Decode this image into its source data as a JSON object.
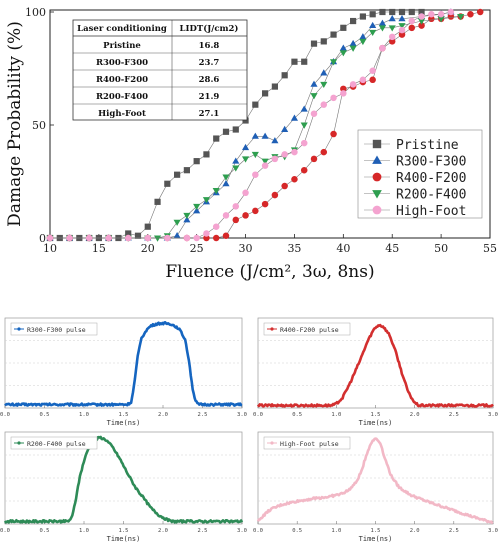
{
  "main_chart": {
    "type": "scatter",
    "xlabel": "Fluence (J/cm², 3ω, 8ns)",
    "ylabel": "Damage Probability (%)",
    "xlim": [
      10,
      55
    ],
    "ylim": [
      0,
      100
    ],
    "x_ticks": [
      "10",
      "15",
      "20",
      "25",
      "30",
      "35",
      "40",
      "45",
      "50",
      "55"
    ],
    "y_ticks": [
      "0",
      "50",
      "100"
    ],
    "legend_position": "bottom-right",
    "series": [
      {
        "name": "Pristine",
        "marker": "square",
        "color": "#555555",
        "points": [
          [
            10,
            0
          ],
          [
            11,
            0
          ],
          [
            12,
            0
          ],
          [
            13,
            0
          ],
          [
            14,
            0
          ],
          [
            15,
            0
          ],
          [
            16,
            0
          ],
          [
            17,
            0
          ],
          [
            18,
            2
          ],
          [
            19,
            1
          ],
          [
            20,
            5
          ],
          [
            21,
            16
          ],
          [
            22,
            24
          ],
          [
            23,
            28
          ],
          [
            24,
            30
          ],
          [
            25,
            34
          ],
          [
            26,
            37
          ],
          [
            27,
            44
          ],
          [
            28,
            47
          ],
          [
            29,
            48
          ],
          [
            30,
            52
          ],
          [
            31,
            59
          ],
          [
            32,
            64
          ],
          [
            33,
            67
          ],
          [
            34,
            72
          ],
          [
            35,
            78
          ],
          [
            36,
            78
          ],
          [
            37,
            86
          ],
          [
            38,
            87
          ],
          [
            39,
            90
          ],
          [
            40,
            93
          ],
          [
            41,
            96
          ],
          [
            42,
            98
          ],
          [
            43,
            99
          ],
          [
            44,
            100
          ],
          [
            45,
            100
          ],
          [
            46,
            100
          ],
          [
            47,
            100
          ],
          [
            48,
            100
          ]
        ]
      },
      {
        "name": "R300-F300",
        "marker": "triangle-up",
        "color": "#1f5fb5",
        "points": [
          [
            10,
            0
          ],
          [
            12,
            0
          ],
          [
            14,
            0
          ],
          [
            16,
            0
          ],
          [
            18,
            0
          ],
          [
            20,
            0
          ],
          [
            22,
            0
          ],
          [
            23,
            1
          ],
          [
            24,
            8
          ],
          [
            25,
            12
          ],
          [
            26,
            16
          ],
          [
            27,
            20
          ],
          [
            28,
            24
          ],
          [
            29,
            34
          ],
          [
            30,
            40
          ],
          [
            31,
            45
          ],
          [
            32,
            45
          ],
          [
            33,
            43
          ],
          [
            34,
            48
          ],
          [
            35,
            53
          ],
          [
            36,
            57
          ],
          [
            37,
            68
          ],
          [
            38,
            73
          ],
          [
            39,
            78
          ],
          [
            40,
            84
          ],
          [
            41,
            86
          ],
          [
            42,
            89
          ],
          [
            43,
            94
          ],
          [
            44,
            95
          ],
          [
            45,
            97
          ],
          [
            46,
            97
          ],
          [
            48,
            98
          ],
          [
            50,
            99
          ],
          [
            51,
            100
          ]
        ]
      },
      {
        "name": "R400-F200",
        "marker": "circle",
        "color": "#d62728",
        "points": [
          [
            10,
            0
          ],
          [
            12,
            0
          ],
          [
            14,
            0
          ],
          [
            16,
            0
          ],
          [
            18,
            0
          ],
          [
            20,
            0
          ],
          [
            22,
            0
          ],
          [
            24,
            0
          ],
          [
            26,
            0
          ],
          [
            27,
            0
          ],
          [
            28,
            1
          ],
          [
            29,
            8
          ],
          [
            30,
            10
          ],
          [
            31,
            12
          ],
          [
            32,
            15
          ],
          [
            33,
            19
          ],
          [
            34,
            23
          ],
          [
            35,
            26
          ],
          [
            36,
            30
          ],
          [
            37,
            35
          ],
          [
            38,
            38
          ],
          [
            39,
            46
          ],
          [
            40,
            66
          ],
          [
            41,
            67
          ],
          [
            42,
            69
          ],
          [
            43,
            70
          ],
          [
            44,
            84
          ],
          [
            45,
            87
          ],
          [
            46,
            90
          ],
          [
            47,
            93
          ],
          [
            48,
            94
          ],
          [
            49,
            97
          ],
          [
            50,
            97
          ],
          [
            51,
            98
          ],
          [
            52,
            98
          ],
          [
            53,
            99
          ],
          [
            54,
            100
          ]
        ]
      },
      {
        "name": "R200-F400",
        "marker": "triangle-down",
        "color": "#2e9e4f",
        "points": [
          [
            10,
            0
          ],
          [
            12,
            0
          ],
          [
            14,
            0
          ],
          [
            16,
            0
          ],
          [
            18,
            0
          ],
          [
            20,
            0
          ],
          [
            21,
            0
          ],
          [
            22,
            1
          ],
          [
            23,
            7
          ],
          [
            24,
            10
          ],
          [
            25,
            14
          ],
          [
            26,
            17
          ],
          [
            27,
            21
          ],
          [
            28,
            27
          ],
          [
            29,
            31
          ],
          [
            30,
            35
          ],
          [
            31,
            37
          ],
          [
            32,
            34
          ],
          [
            33,
            36
          ],
          [
            34,
            36
          ],
          [
            35,
            39
          ],
          [
            36,
            50
          ],
          [
            37,
            63
          ],
          [
            38,
            68
          ],
          [
            39,
            78
          ],
          [
            40,
            82
          ],
          [
            41,
            84
          ],
          [
            42,
            87
          ],
          [
            43,
            91
          ],
          [
            44,
            93
          ],
          [
            45,
            93
          ],
          [
            46,
            94
          ],
          [
            48,
            96
          ],
          [
            50,
            97
          ],
          [
            52,
            98
          ]
        ]
      },
      {
        "name": "High-Foot",
        "marker": "circle",
        "color": "#f4a3d0",
        "points": [
          [
            10,
            0
          ],
          [
            12,
            0
          ],
          [
            14,
            0
          ],
          [
            16,
            0
          ],
          [
            18,
            0
          ],
          [
            20,
            0
          ],
          [
            22,
            0
          ],
          [
            24,
            0
          ],
          [
            25,
            0
          ],
          [
            26,
            2
          ],
          [
            27,
            5
          ],
          [
            28,
            10
          ],
          [
            29,
            14
          ],
          [
            30,
            20
          ],
          [
            31,
            28
          ],
          [
            32,
            32
          ],
          [
            33,
            35
          ],
          [
            34,
            37
          ],
          [
            35,
            38
          ],
          [
            36,
            42
          ],
          [
            37,
            55
          ],
          [
            38,
            59
          ],
          [
            39,
            62
          ],
          [
            40,
            64
          ],
          [
            41,
            68
          ],
          [
            42,
            70
          ],
          [
            43,
            74
          ],
          [
            44,
            84
          ],
          [
            45,
            89
          ],
          [
            46,
            92
          ],
          [
            47,
            96
          ],
          [
            48,
            98
          ],
          [
            49,
            99
          ],
          [
            50,
            99
          ],
          [
            51,
            100
          ]
        ]
      }
    ]
  },
  "lidt_table": {
    "headers": [
      "Laser conditioning",
      "LIDT(J/cm2)"
    ],
    "rows": [
      [
        "Pristine",
        "16.8"
      ],
      [
        "R300-F300",
        "23.7"
      ],
      [
        "R400-F200",
        "28.6"
      ],
      [
        "R200-F400",
        "21.9"
      ],
      [
        "High-Foot",
        "27.1"
      ]
    ]
  },
  "pulse_charts": [
    {
      "label": "R300-F300 pulse",
      "color": "#1565c0",
      "xlabel": "Time(ns)",
      "x_ticks": [
        "0.0",
        "0.5",
        "1.0",
        "1.5",
        "2.0",
        "2.5",
        "3.0"
      ],
      "xlim": [
        0,
        3.0
      ],
      "ylim": [
        0,
        1.05
      ],
      "shape": [
        [
          0,
          0.04
        ],
        [
          1.55,
          0.04
        ],
        [
          1.6,
          0.07
        ],
        [
          1.64,
          0.3
        ],
        [
          1.68,
          0.6
        ],
        [
          1.72,
          0.8
        ],
        [
          1.78,
          0.9
        ],
        [
          1.85,
          0.96
        ],
        [
          1.92,
          0.98
        ],
        [
          2.0,
          0.99
        ],
        [
          2.1,
          0.98
        ],
        [
          2.2,
          0.93
        ],
        [
          2.28,
          0.8
        ],
        [
          2.33,
          0.55
        ],
        [
          2.37,
          0.25
        ],
        [
          2.41,
          0.08
        ],
        [
          2.45,
          0.04
        ],
        [
          3.0,
          0.04
        ]
      ]
    },
    {
      "label": "R400-F200 pulse",
      "color": "#d32f2f",
      "xlabel": "Time(ns)",
      "x_ticks": [
        "0.0",
        "0.5",
        "1.0",
        "1.5",
        "2.0",
        "2.5",
        "3.0"
      ],
      "xlim": [
        0,
        3.0
      ],
      "ylim": [
        0,
        1.05
      ],
      "shape": [
        [
          0,
          0.03
        ],
        [
          0.95,
          0.03
        ],
        [
          1.0,
          0.05
        ],
        [
          1.08,
          0.12
        ],
        [
          1.18,
          0.3
        ],
        [
          1.3,
          0.55
        ],
        [
          1.4,
          0.78
        ],
        [
          1.48,
          0.92
        ],
        [
          1.54,
          0.97
        ],
        [
          1.6,
          0.95
        ],
        [
          1.68,
          0.85
        ],
        [
          1.76,
          0.65
        ],
        [
          1.84,
          0.4
        ],
        [
          1.92,
          0.18
        ],
        [
          2.0,
          0.06
        ],
        [
          2.05,
          0.03
        ],
        [
          3.0,
          0.03
        ]
      ]
    },
    {
      "label": "R200-F400 pulse",
      "color": "#2e8b57",
      "xlabel": "Time(ns)",
      "x_ticks": [
        "0.0",
        "0.5",
        "1.0",
        "1.5",
        "2.0",
        "2.5",
        "3.0"
      ],
      "xlim": [
        0,
        3.0
      ],
      "ylim": [
        0,
        1.05
      ],
      "shape": [
        [
          0,
          0.03
        ],
        [
          0.8,
          0.03
        ],
        [
          0.85,
          0.08
        ],
        [
          0.9,
          0.3
        ],
        [
          0.95,
          0.55
        ],
        [
          1.0,
          0.72
        ],
        [
          1.05,
          0.85
        ],
        [
          1.12,
          0.95
        ],
        [
          1.2,
          0.99
        ],
        [
          1.28,
          0.96
        ],
        [
          1.36,
          0.88
        ],
        [
          1.45,
          0.75
        ],
        [
          1.55,
          0.58
        ],
        [
          1.65,
          0.42
        ],
        [
          1.75,
          0.3
        ],
        [
          1.85,
          0.18
        ],
        [
          1.95,
          0.1
        ],
        [
          2.05,
          0.05
        ],
        [
          2.1,
          0.03
        ],
        [
          3.0,
          0.03
        ]
      ]
    },
    {
      "label": "High-Foot pulse",
      "color": "#f2b8c6",
      "xlabel": "Time(ns)",
      "x_ticks": [
        "0.0",
        "0.5",
        "1.0",
        "1.5",
        "2.0",
        "2.5",
        "3.0"
      ],
      "xlim": [
        0,
        3.0
      ],
      "ylim": [
        0,
        1.05
      ],
      "shape": [
        [
          0,
          0.03
        ],
        [
          0.05,
          0.08
        ],
        [
          0.15,
          0.16
        ],
        [
          0.3,
          0.22
        ],
        [
          0.5,
          0.26
        ],
        [
          0.7,
          0.29
        ],
        [
          0.9,
          0.31
        ],
        [
          1.05,
          0.34
        ],
        [
          1.15,
          0.38
        ],
        [
          1.25,
          0.47
        ],
        [
          1.32,
          0.6
        ],
        [
          1.38,
          0.78
        ],
        [
          1.44,
          0.92
        ],
        [
          1.5,
          0.98
        ],
        [
          1.56,
          0.93
        ],
        [
          1.62,
          0.75
        ],
        [
          1.7,
          0.55
        ],
        [
          1.8,
          0.42
        ],
        [
          1.95,
          0.33
        ],
        [
          2.15,
          0.26
        ],
        [
          2.35,
          0.2
        ],
        [
          2.55,
          0.14
        ],
        [
          2.75,
          0.08
        ],
        [
          2.9,
          0.04
        ],
        [
          3.0,
          0.02
        ]
      ]
    }
  ]
}
